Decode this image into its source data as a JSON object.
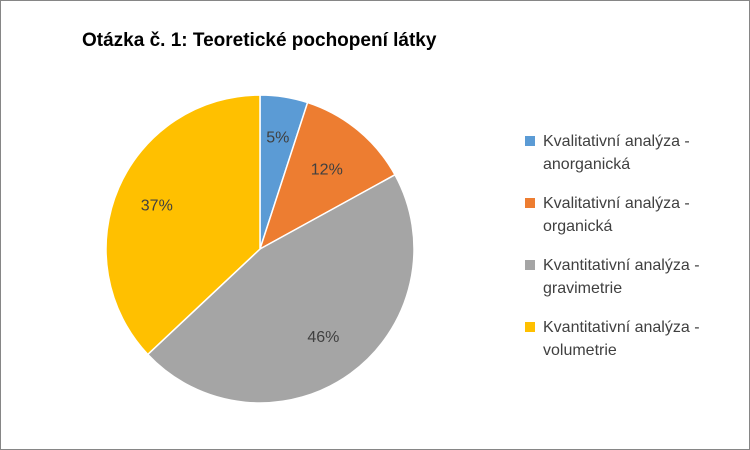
{
  "chart_data": {
    "type": "pie",
    "title": "Otázka č. 1: Teoretické pochopení látky",
    "categories": [
      "Kvalitativní analýza - anorganická",
      "Kvalitativní analýza - organická",
      "Kvantitativní analýza - gravimetrie",
      "Kvantitativní analýza - volumetrie"
    ],
    "values": [
      5,
      12,
      46,
      37
    ],
    "data_labels": [
      "5%",
      "12%",
      "46%",
      "37%"
    ],
    "colors": [
      "#5B9BD5",
      "#ED7D31",
      "#A5A5A5",
      "#FFC000"
    ],
    "legend_position": "right"
  }
}
